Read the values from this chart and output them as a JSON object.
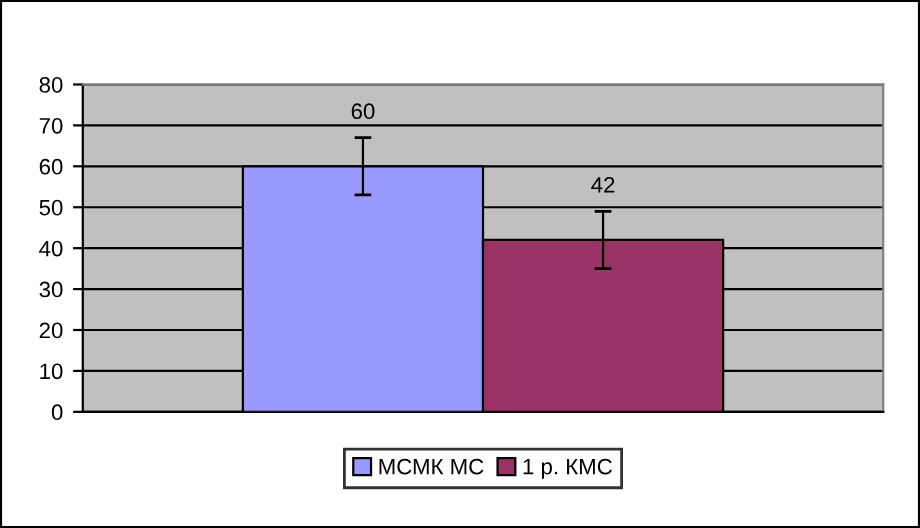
{
  "chart_data": {
    "type": "bar",
    "categories": [
      null
    ],
    "series": [
      {
        "name": "МСМК МС",
        "color": "#9999ff",
        "values": [
          60
        ],
        "errors": [
          7
        ]
      },
      {
        "name": "1 р. КМС",
        "color": "#993366",
        "values": [
          42
        ],
        "errors": [
          7
        ]
      }
    ],
    "ylim": [
      0,
      80
    ],
    "yticks": [
      0,
      10,
      20,
      30,
      40,
      50,
      60,
      70,
      80
    ],
    "grid": "y",
    "legend": "bottom",
    "data_labels": true
  }
}
